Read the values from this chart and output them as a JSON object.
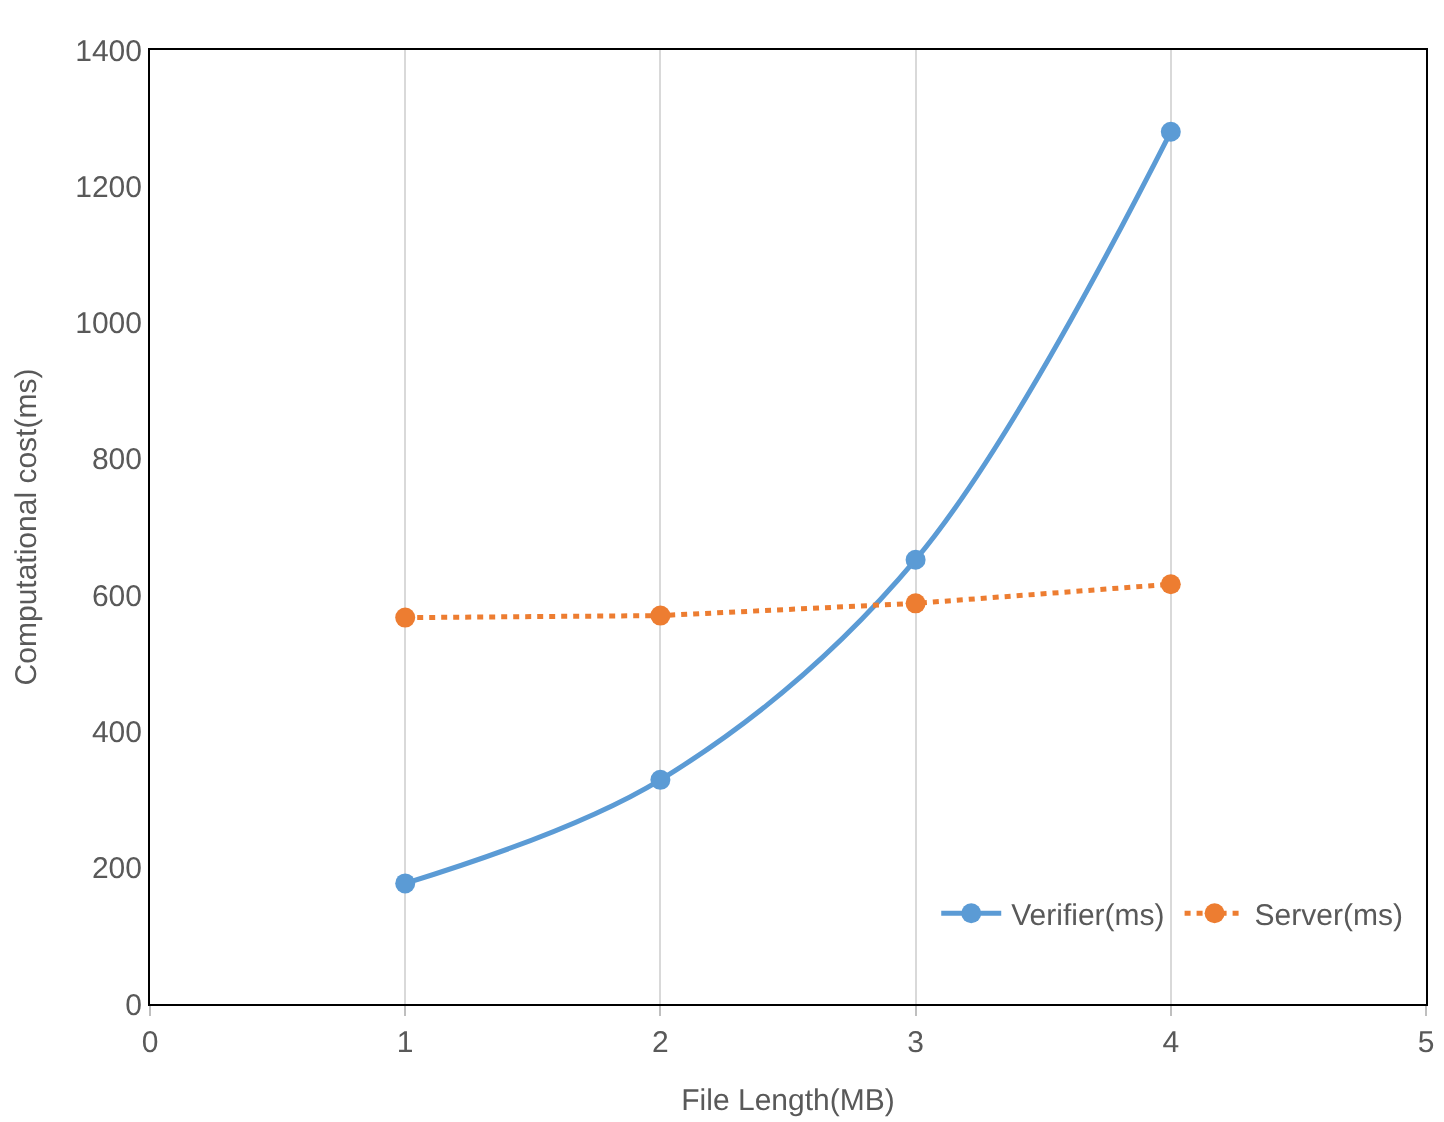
{
  "chart_data": {
    "type": "line",
    "xlabel": "File Length(MB)",
    "ylabel": "Computational cost(ms)",
    "x": [
      1,
      2,
      3,
      4
    ],
    "series": [
      {
        "name": "Verifier(ms)",
        "color": "#5b9bd5",
        "values": [
          177,
          329,
          652,
          1280
        ],
        "line_style": "solid"
      },
      {
        "name": "Server(ms)",
        "color": "#ed7d31",
        "values": [
          567,
          570,
          588,
          616
        ],
        "line_style": "dotted"
      }
    ],
    "xlim": [
      0,
      5
    ],
    "xticks": [
      0,
      1,
      2,
      3,
      4,
      5
    ],
    "ylim": [
      0,
      1400
    ],
    "yticks": [
      0,
      200,
      400,
      600,
      800,
      1000,
      1200,
      1400
    ],
    "grid": "x",
    "legend": "bottom right",
    "marker": "circle"
  }
}
